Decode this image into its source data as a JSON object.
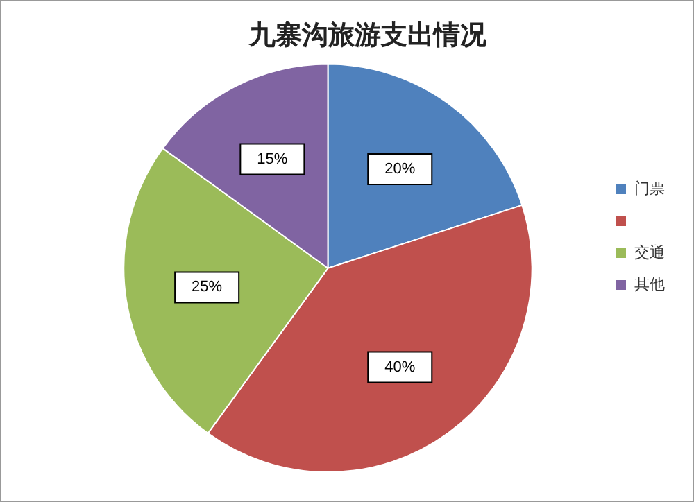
{
  "chart_data": {
    "type": "pie",
    "title": "九寨沟旅游支出情况",
    "categories": [
      "门票",
      null,
      "交通",
      "其他"
    ],
    "values": [
      20,
      40,
      25,
      15
    ],
    "colors": [
      "#4f81bd",
      "#c0504d",
      "#9bbb59",
      "#8064a2"
    ],
    "value_labels": [
      "20%",
      "40%",
      "25%",
      "15%"
    ],
    "legend": "right"
  }
}
